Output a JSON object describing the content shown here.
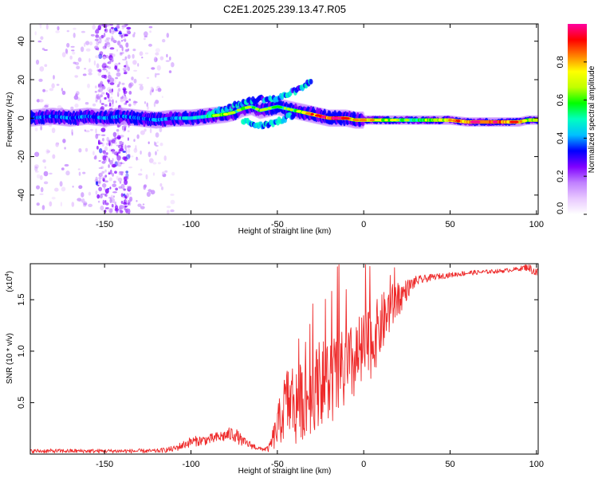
{
  "title": "C2E1.2025.239.13.47.R05",
  "chart_data": [
    {
      "type": "heatmap",
      "name": "spectrogram",
      "xlabel": "Height of straight line (km)",
      "ylabel": "Frequency (Hz)",
      "xlim": [
        -193,
        101
      ],
      "ylim": [
        -50,
        49
      ],
      "xticks": [
        -150,
        -100,
        -50,
        0,
        50,
        100
      ],
      "yticks": [
        -40,
        -20,
        0,
        20,
        40
      ],
      "colorbar": {
        "label": "Normalized spectral amplitude",
        "range": [
          0.0,
          1.0
        ],
        "ticks": [
          0.0,
          0.2,
          0.4,
          0.6,
          0.8
        ],
        "colors": [
          "#ffffff",
          "#e8c8ff",
          "#c080ff",
          "#8000ff",
          "#0000ff",
          "#00c0ff",
          "#00ffc0",
          "#00ff00",
          "#c0ff00",
          "#ffff00",
          "#ff8000",
          "#ff0000",
          "#ff00a0"
        ]
      },
      "ridge": {
        "x": [
          -193,
          -180,
          -170,
          -160,
          -150,
          -140,
          -130,
          -120,
          -110,
          -100,
          -90,
          -80,
          -75,
          -70,
          -65,
          -60,
          -55,
          -50,
          -45,
          -40,
          -35,
          -30,
          -25,
          -20,
          -15,
          -10,
          -5,
          0,
          10,
          20,
          30,
          40,
          50,
          60,
          70,
          80,
          90,
          95,
          100
        ],
        "freq": [
          0,
          1,
          0,
          1,
          0,
          1,
          0,
          -1,
          0,
          0,
          1,
          2,
          3,
          5,
          6,
          4,
          5,
          6,
          5,
          4,
          3,
          2,
          1,
          0,
          0,
          0,
          -1,
          -1,
          -1,
          -1,
          -1,
          -1,
          -1,
          -2,
          -2,
          -2,
          -2,
          -1,
          -1
        ],
        "amplitude": [
          0.35,
          0.35,
          0.4,
          0.35,
          0.4,
          0.4,
          0.35,
          0.4,
          0.4,
          0.45,
          0.5,
          0.6,
          0.5,
          0.55,
          0.45,
          0.5,
          0.5,
          0.45,
          0.5,
          0.55,
          0.6,
          0.75,
          0.8,
          0.85,
          0.9,
          0.75,
          0.65,
          0.7,
          0.6,
          0.55,
          0.55,
          0.6,
          0.7,
          0.8,
          0.85,
          0.85,
          0.7,
          0.6,
          0.7
        ]
      },
      "upper_branch": {
        "x": [
          -90,
          -80,
          -70,
          -60,
          -50,
          -45,
          -40,
          -35,
          -30
        ],
        "freq": [
          2,
          5,
          8,
          10,
          10,
          12,
          14,
          16,
          20
        ]
      },
      "lower_branch": {
        "x": [
          -70,
          -65,
          -60,
          -55,
          -50,
          -45,
          -40
        ],
        "freq": [
          -1,
          -3,
          -4,
          -3,
          -2,
          0,
          2
        ]
      },
      "scatter_band_km": [
        -155,
        -135
      ]
    },
    {
      "type": "line",
      "name": "snr",
      "xlabel": "Height of straight line (km)",
      "ylabel": "SNR (10 * v/v)",
      "multiplier": "(x10",
      "multiplier_exp": "4",
      "multiplier_close": ")",
      "xlim": [
        -193,
        101
      ],
      "ylim": [
        0,
        1.85
      ],
      "xticks": [
        -150,
        -100,
        -50,
        0,
        50,
        100
      ],
      "yticks": [
        0.5,
        1.0,
        1.5
      ],
      "color": "#ee2a2a",
      "envelope": {
        "x": [
          -193,
          -150,
          -120,
          -110,
          -100,
          -90,
          -80,
          -75,
          -70,
          -60,
          -55,
          -50,
          -45,
          -40,
          -35,
          -30,
          -25,
          -20,
          -15,
          -10,
          -5,
          0,
          5,
          10,
          15,
          20,
          25,
          30,
          40,
          50,
          60,
          70,
          80,
          90,
          95,
          100
        ],
        "mean": [
          0.03,
          0.03,
          0.03,
          0.05,
          0.12,
          0.14,
          0.18,
          0.2,
          0.12,
          0.05,
          0.05,
          0.25,
          0.5,
          0.5,
          0.5,
          0.6,
          0.7,
          0.7,
          0.75,
          0.8,
          0.9,
          1.0,
          1.1,
          1.25,
          1.4,
          1.5,
          1.6,
          1.68,
          1.72,
          1.74,
          1.76,
          1.77,
          1.78,
          1.8,
          1.82,
          1.76
        ],
        "noise": [
          0.02,
          0.02,
          0.02,
          0.03,
          0.05,
          0.05,
          0.06,
          0.08,
          0.05,
          0.02,
          0.03,
          0.2,
          0.35,
          0.45,
          0.35,
          0.4,
          0.4,
          0.45,
          0.45,
          0.4,
          0.4,
          0.4,
          0.35,
          0.3,
          0.25,
          0.18,
          0.1,
          0.05,
          0.03,
          0.025,
          0.025,
          0.02,
          0.02,
          0.02,
          0.04,
          0.05
        ]
      }
    }
  ]
}
